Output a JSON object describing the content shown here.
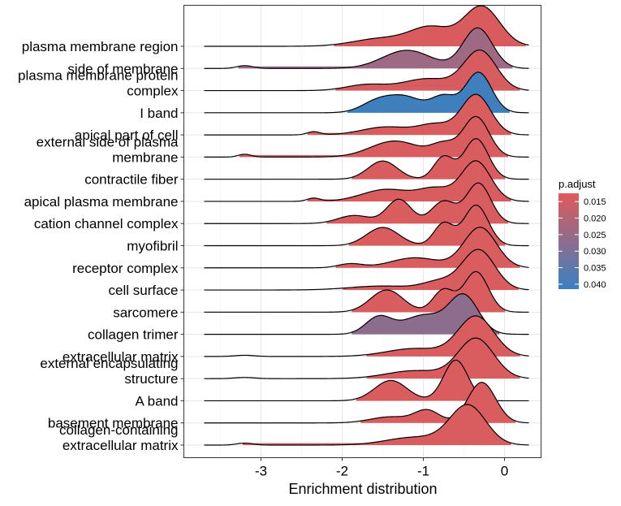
{
  "chart_data": {
    "type": "ridgeline",
    "xlabel": "Enrichment distribution",
    "ylabel": "",
    "xlim": [
      -3.95,
      0.45
    ],
    "x_ticks": [
      -3,
      -2,
      -1,
      0
    ],
    "x_tick_labels": [
      "-3",
      "-2",
      "-1",
      "0"
    ],
    "grid": true,
    "legend": {
      "title": "p.adjust",
      "placement": "right",
      "min": 0.0125,
      "max": 0.0415,
      "ticks": [
        0.015,
        0.02,
        0.025,
        0.03,
        0.035,
        0.04
      ],
      "tick_labels": [
        "0.015",
        "0.020",
        "0.025",
        "0.030",
        "0.035",
        "0.040"
      ],
      "low_color": "#e05a5a",
      "high_color": "#3a80c2"
    },
    "curve_start": -3.7,
    "curve_end": 0.3,
    "series": [
      {
        "label_lines": [
          "plasma membrane region"
        ],
        "p_adjust": 0.0135,
        "peaks": [
          [
            -1.5,
            0.35,
            0.2
          ],
          [
            -0.9,
            0.25,
            0.45
          ],
          [
            -0.28,
            0.22,
            1.0
          ]
        ]
      },
      {
        "label_lines": [
          "side of membrane"
        ],
        "p_adjust": 0.024,
        "peaks": [
          [
            -3.2,
            0.1,
            0.07
          ],
          [
            -1.2,
            0.3,
            0.45
          ],
          [
            -0.33,
            0.18,
            1.0
          ]
        ]
      },
      {
        "label_lines": [
          "plasma membrane protein",
          "complex"
        ],
        "p_adjust": 0.014,
        "peaks": [
          [
            -1.7,
            0.25,
            0.15
          ],
          [
            -0.95,
            0.3,
            0.3
          ],
          [
            -0.3,
            0.2,
            1.0
          ]
        ]
      },
      {
        "label_lines": [
          "I band"
        ],
        "p_adjust": 0.0405,
        "peaks": [
          [
            -1.55,
            0.2,
            0.3
          ],
          [
            -1.2,
            0.2,
            0.35
          ],
          [
            -0.75,
            0.15,
            0.4
          ],
          [
            -0.32,
            0.16,
            1.0
          ]
        ]
      },
      {
        "label_lines": [
          "apical part of cell"
        ],
        "p_adjust": 0.0138,
        "peaks": [
          [
            -2.35,
            0.08,
            0.08
          ],
          [
            -1.45,
            0.3,
            0.2
          ],
          [
            -0.85,
            0.2,
            0.25
          ],
          [
            -0.35,
            0.18,
            1.0
          ]
        ]
      },
      {
        "label_lines": [
          "external side of plasma",
          "membrane"
        ],
        "p_adjust": 0.0138,
        "peaks": [
          [
            -3.2,
            0.08,
            0.07
          ],
          [
            -1.35,
            0.3,
            0.4
          ],
          [
            -0.75,
            0.15,
            0.3
          ],
          [
            -0.35,
            0.16,
            1.0
          ]
        ]
      },
      {
        "label_lines": [
          "contractile fiber"
        ],
        "p_adjust": 0.0138,
        "peaks": [
          [
            -1.5,
            0.18,
            0.45
          ],
          [
            -0.75,
            0.12,
            0.55
          ],
          [
            -0.35,
            0.15,
            1.0
          ]
        ]
      },
      {
        "label_lines": [
          "apical plasma membrane"
        ],
        "p_adjust": 0.0138,
        "peaks": [
          [
            -2.35,
            0.08,
            0.08
          ],
          [
            -1.45,
            0.3,
            0.3
          ],
          [
            -0.85,
            0.2,
            0.3
          ],
          [
            -0.35,
            0.18,
            1.0
          ]
        ]
      },
      {
        "label_lines": [
          "cation channel complex"
        ],
        "p_adjust": 0.0138,
        "peaks": [
          [
            -1.85,
            0.2,
            0.2
          ],
          [
            -1.3,
            0.15,
            0.6
          ],
          [
            -0.75,
            0.15,
            0.55
          ],
          [
            -0.32,
            0.15,
            1.0
          ]
        ]
      },
      {
        "label_lines": [
          "myofibril"
        ],
        "p_adjust": 0.0138,
        "peaks": [
          [
            -1.5,
            0.2,
            0.45
          ],
          [
            -0.75,
            0.12,
            0.55
          ],
          [
            -0.35,
            0.15,
            1.0
          ]
        ]
      },
      {
        "label_lines": [
          "receptor complex"
        ],
        "p_adjust": 0.0138,
        "peaks": [
          [
            -1.9,
            0.15,
            0.1
          ],
          [
            -1.1,
            0.3,
            0.25
          ],
          [
            -0.3,
            0.2,
            1.0
          ]
        ]
      },
      {
        "label_lines": [
          "cell surface"
        ],
        "p_adjust": 0.0138,
        "peaks": [
          [
            -1.5,
            0.4,
            0.1
          ],
          [
            -0.8,
            0.2,
            0.2
          ],
          [
            -0.32,
            0.2,
            1.0
          ]
        ]
      },
      {
        "label_lines": [
          "sarcomere"
        ],
        "p_adjust": 0.0138,
        "peaks": [
          [
            -1.45,
            0.2,
            0.55
          ],
          [
            -0.75,
            0.13,
            0.55
          ],
          [
            -0.35,
            0.15,
            1.0
          ]
        ]
      },
      {
        "label_lines": [
          "collagen trimer"
        ],
        "p_adjust": 0.027,
        "peaks": [
          [
            -1.55,
            0.16,
            0.45
          ],
          [
            -1.0,
            0.25,
            0.5
          ],
          [
            -0.5,
            0.18,
            1.0
          ]
        ]
      },
      {
        "label_lines": [
          "extracellular matrix"
        ],
        "p_adjust": 0.0138,
        "peaks": [
          [
            -3.2,
            0.12,
            0.03
          ],
          [
            -1.1,
            0.35,
            0.2
          ],
          [
            -0.35,
            0.22,
            1.0
          ]
        ]
      },
      {
        "label_lines": [
          "external encapsulating",
          "structure"
        ],
        "p_adjust": 0.0138,
        "peaks": [
          [
            -3.2,
            0.12,
            0.03
          ],
          [
            -1.1,
            0.35,
            0.2
          ],
          [
            -0.35,
            0.22,
            1.0
          ]
        ]
      },
      {
        "label_lines": [
          "A band"
        ],
        "p_adjust": 0.0138,
        "peaks": [
          [
            -1.4,
            0.2,
            0.5
          ],
          [
            -0.6,
            0.15,
            1.0
          ]
        ]
      },
      {
        "label_lines": [
          "basement membrane"
        ],
        "p_adjust": 0.0138,
        "peaks": [
          [
            -1.4,
            0.25,
            0.15
          ],
          [
            -0.95,
            0.15,
            0.3
          ],
          [
            -0.28,
            0.17,
            1.0
          ]
        ]
      },
      {
        "label_lines": [
          "collagen-containing",
          "extracellular matrix"
        ],
        "p_adjust": 0.0138,
        "peaks": [
          [
            -3.2,
            0.1,
            0.05
          ],
          [
            -1.1,
            0.35,
            0.2
          ],
          [
            -0.45,
            0.22,
            1.0
          ]
        ]
      }
    ]
  }
}
